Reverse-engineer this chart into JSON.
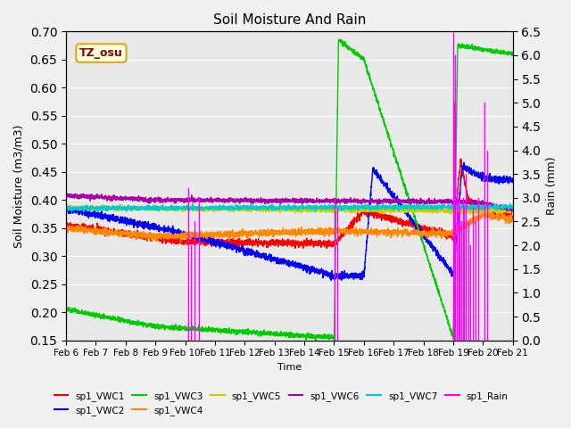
{
  "title": "Soil Moisture And Rain",
  "xlabel": "Time",
  "ylabel_left": "Soil Moisture (m3/m3)",
  "ylabel_right": "Rain (mm)",
  "station_label": "TZ_osu",
  "ylim_left": [
    0.15,
    0.7
  ],
  "ylim_right": [
    0.0,
    6.5
  ],
  "yticks_left": [
    0.15,
    0.2,
    0.25,
    0.3,
    0.35,
    0.4,
    0.45,
    0.5,
    0.55,
    0.6,
    0.65,
    0.7
  ],
  "yticks_right": [
    0.0,
    0.5,
    1.0,
    1.5,
    2.0,
    2.5,
    3.0,
    3.5,
    4.0,
    4.5,
    5.0,
    5.5,
    6.0,
    6.5
  ],
  "xtick_labels": [
    "Feb 6",
    "Feb 7",
    "Feb 8",
    "Feb 9",
    "Feb 10",
    "Feb 11",
    "Feb 12",
    "Feb 13",
    "Feb 14",
    "Feb 15",
    "Feb 16",
    "Feb 17",
    "Feb 18",
    "Feb 19",
    "Feb 20",
    "Feb 21"
  ],
  "colors": {
    "VWC1": "#ff0000",
    "VWC2": "#0000ff",
    "VWC3": "#00cc00",
    "VWC4": "#ff8800",
    "VWC5": "#cccc00",
    "VWC6": "#aa00aa",
    "VWC7": "#00cccc",
    "Rain": "#ff00ff"
  },
  "bg_color": "#e8e8e8",
  "n_points": 3000
}
